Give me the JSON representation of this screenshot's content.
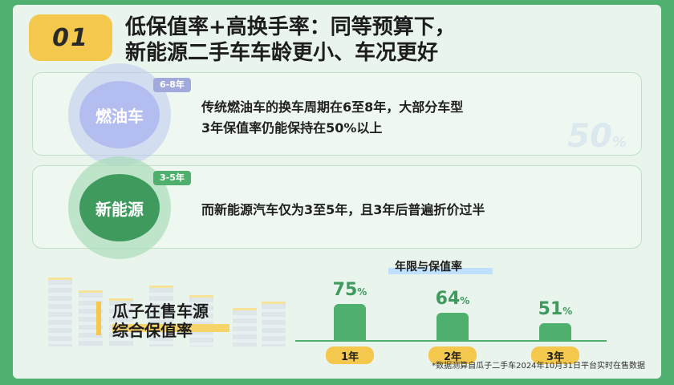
{
  "header": {
    "number": "01",
    "headline_line1": "低保值率+高换手率：同等预算下，",
    "headline_line2": "新能源二手车车龄更小、车况更好"
  },
  "fuel_card": {
    "age_tag": "6-8年",
    "label": "燃油车",
    "text_line1": "传统燃油车的换车周期在6至8年，大部分车型",
    "text_line2": "3年保值率仍能保持在50%以上",
    "watermark_value": "50",
    "watermark_unit": "%"
  },
  "ev_card": {
    "age_tag": "3-5年",
    "label": "新能源",
    "text": "而新能源汽车仅为3至5年，且3年后普遍折价过半"
  },
  "promo": {
    "line1": "瓜子在售车源",
    "line2": "综合保值率"
  },
  "chart_data": {
    "type": "bar",
    "title": "年限与保值率",
    "categories": [
      "1年",
      "2年",
      "3年"
    ],
    "values": [
      75,
      64,
      51
    ],
    "unit": "%",
    "ylim": [
      0,
      100
    ],
    "color": "#4faf6c"
  },
  "footnote": "*数据测算自瓜子二手车2024年10月31日平台实时在售数据"
}
